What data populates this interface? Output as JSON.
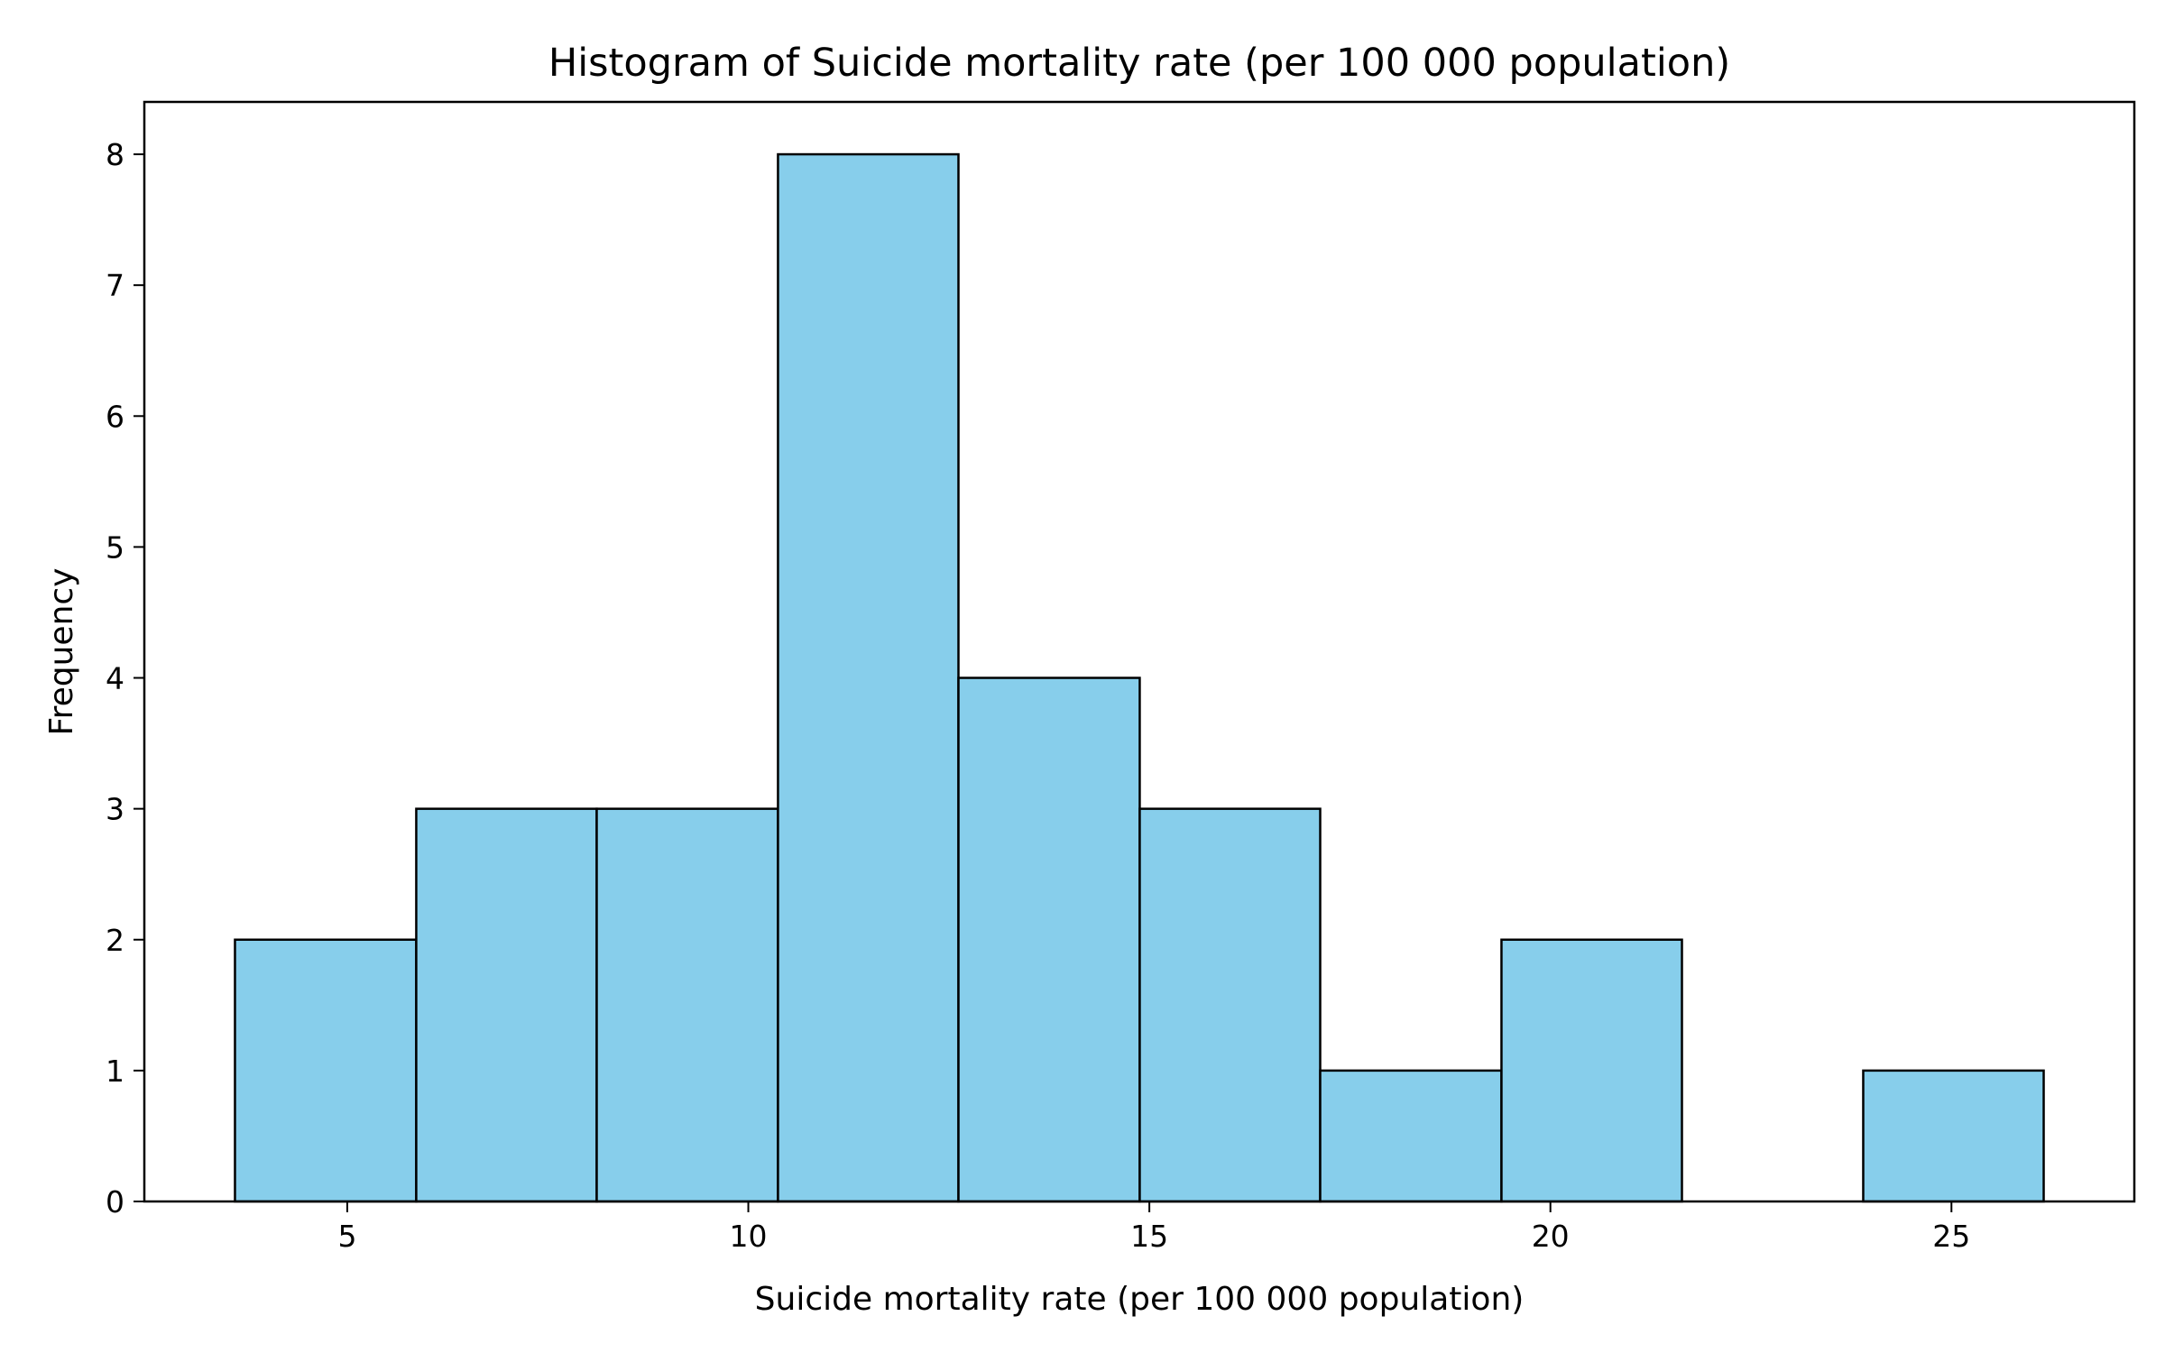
{
  "chart_data": {
    "type": "bar",
    "title": "Histogram of Suicide mortality rate (per 100 000 population)",
    "xlabel": "Suicide mortality rate (per 100 000 population)",
    "ylabel": "Frequency",
    "bin_edges": [
      3.6,
      5.86,
      8.11,
      10.37,
      12.62,
      14.88,
      17.13,
      19.39,
      21.64,
      23.9,
      26.15
    ],
    "values": [
      2,
      3,
      3,
      8,
      4,
      3,
      1,
      2,
      0,
      1
    ],
    "xlim": [
      2.47,
      27.28
    ],
    "ylim": [
      0,
      8.4
    ],
    "xticks": [
      5,
      10,
      15,
      20,
      25
    ],
    "yticks": [
      0,
      1,
      2,
      3,
      4,
      5,
      6,
      7,
      8
    ],
    "grid": false,
    "colors": {
      "bar_fill": "#87CEEB",
      "bar_edge": "#000000",
      "axis": "#000000"
    }
  }
}
